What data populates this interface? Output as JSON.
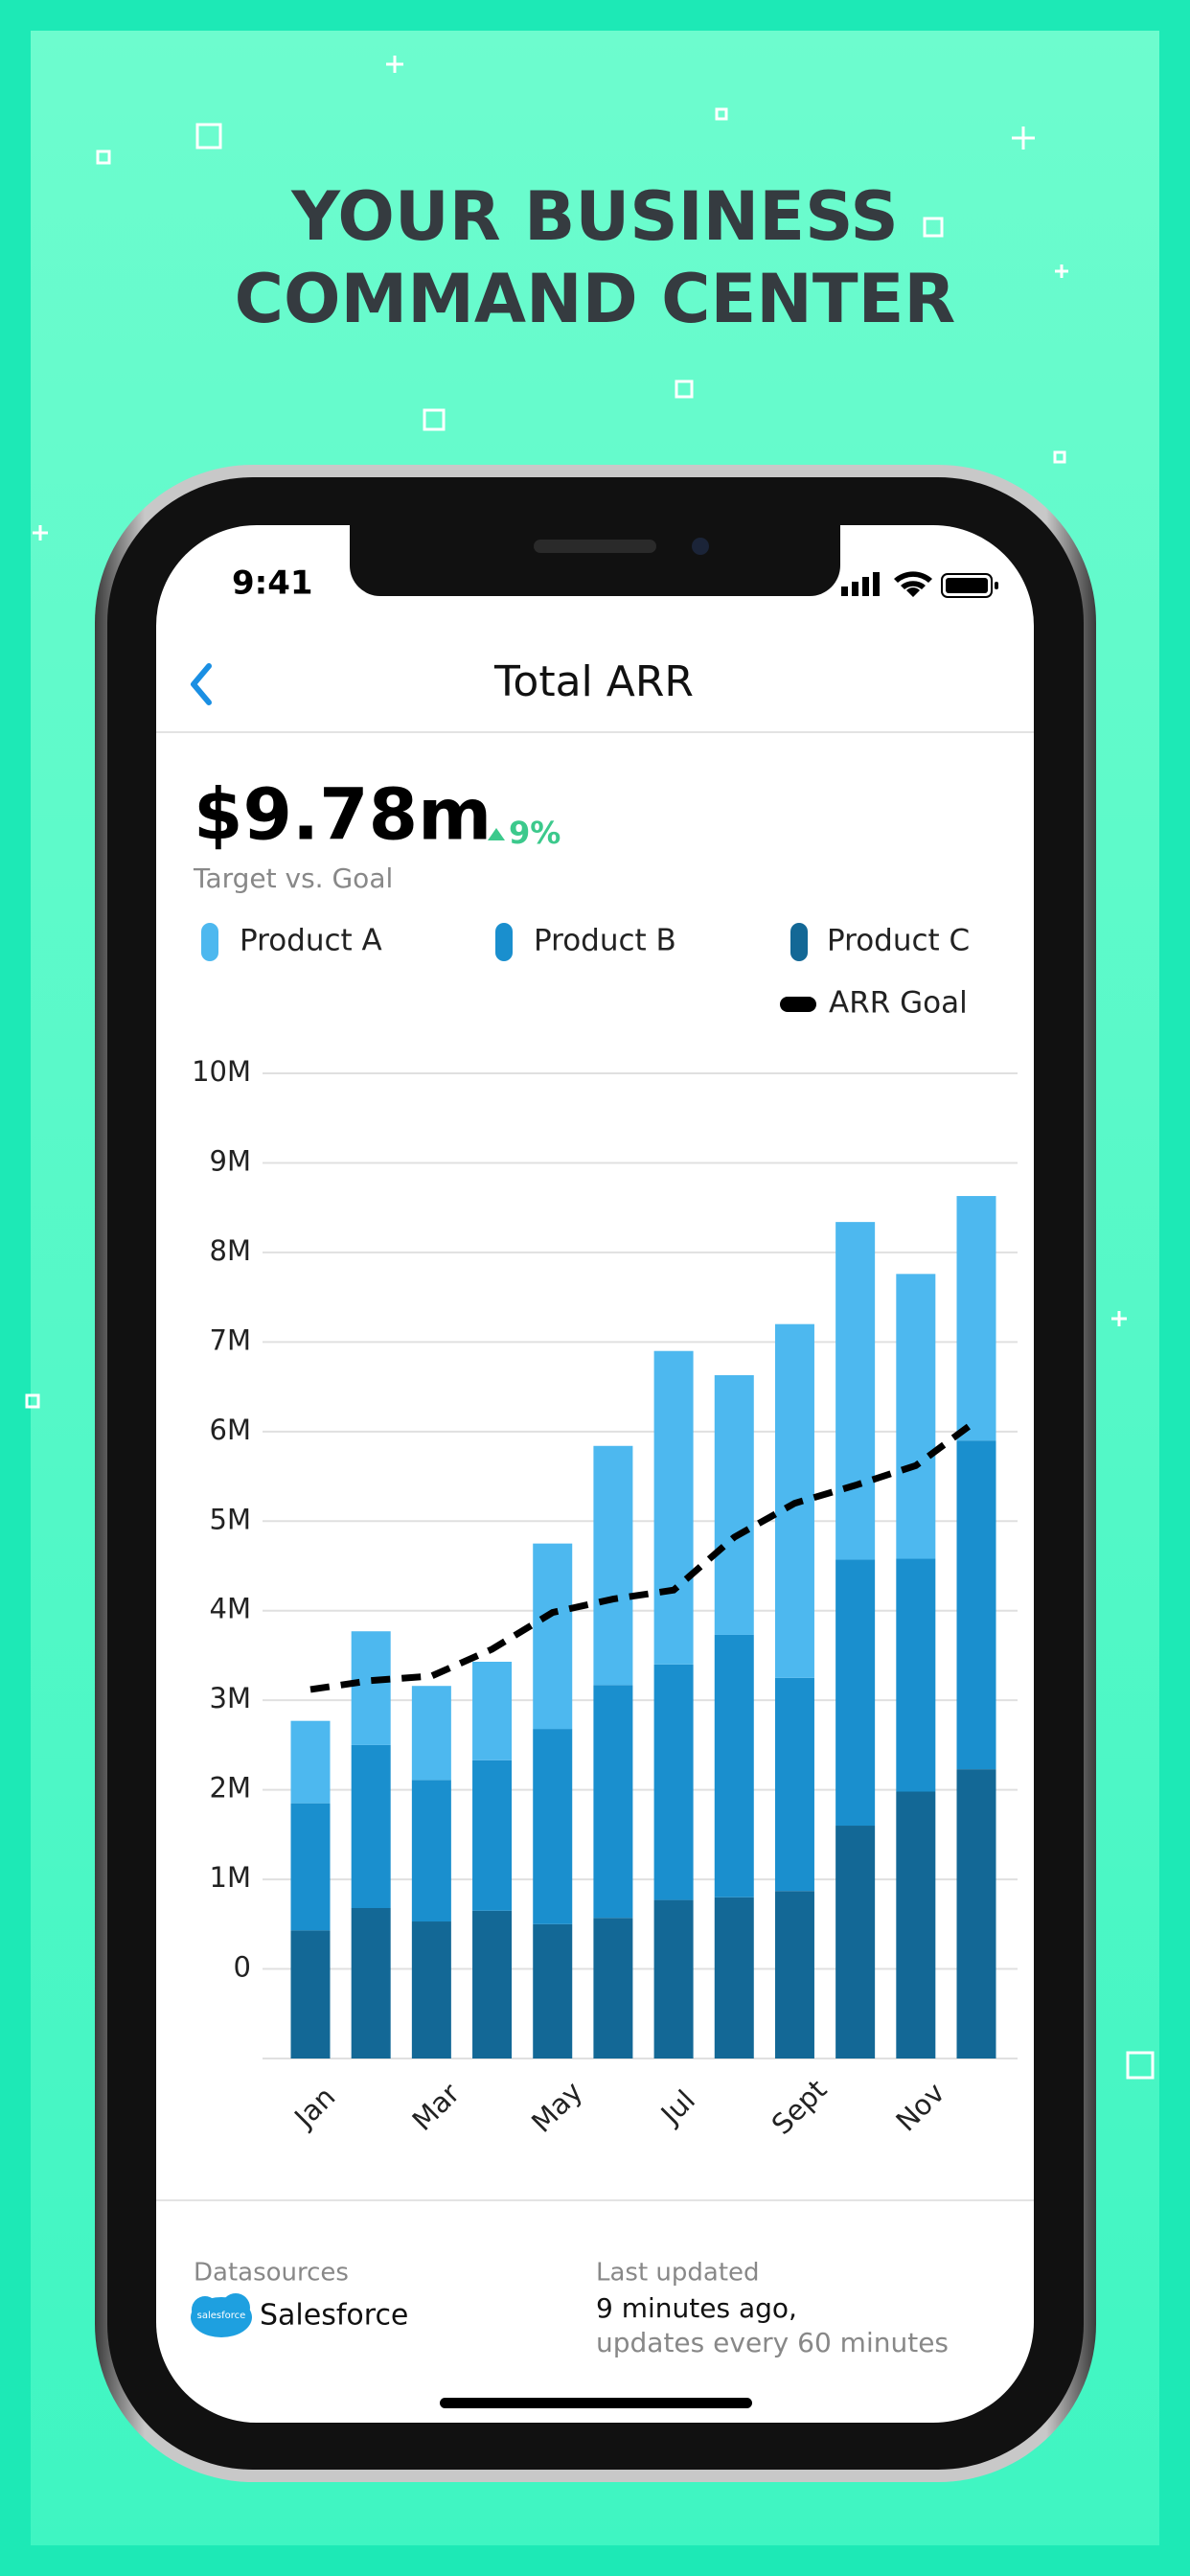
{
  "header": {
    "title_lines": [
      "YOUR BUSINESS",
      "COMMAND CENTER"
    ]
  },
  "status_bar": {
    "time": "9:41"
  },
  "screen": {
    "title": "Total ARR"
  },
  "kpi": {
    "value": "$9.78m",
    "change": "9%",
    "subtitle": "Target vs. Goal"
  },
  "chart_data": {
    "type": "stacked_bar",
    "categories": [
      "Jan",
      null,
      "Mar",
      null,
      "May",
      null,
      "Jul",
      null,
      "Sept",
      null,
      "Nov",
      null
    ],
    "series": [
      {
        "name": "Product A",
        "type": "bar",
        "color": "#4db8ef",
        "values": [
          920000,
          1270000,
          1050000,
          1100000,
          2070000,
          2670000,
          3500000,
          2900000,
          3950000,
          3770000,
          3180000,
          2730000
        ]
      },
      {
        "name": "Product B",
        "type": "bar",
        "color": "#1a8fce",
        "values": [
          1420000,
          1820000,
          1580000,
          1680000,
          2180000,
          2600000,
          2630000,
          2930000,
          2380000,
          2970000,
          2600000,
          3670000
        ]
      },
      {
        "name": "Product C",
        "type": "bar",
        "color": "#136896",
        "values": [
          1430000,
          1680000,
          1530000,
          1650000,
          1500000,
          1570000,
          1770000,
          1800000,
          1870000,
          2600000,
          2980000,
          3230000
        ]
      },
      {
        "name": "ARR Goal",
        "type": "line",
        "color": "#000000",
        "values": [
          3120000,
          3220000,
          3270000,
          3570000,
          3980000,
          4130000,
          4230000,
          4820000,
          5200000,
          5400000,
          5620000,
          6120000
        ]
      }
    ],
    "ylim": [
      -1000000,
      10000000
    ],
    "yticks": [
      0,
      {
        "value": 1000000,
        "label": "1M"
      },
      {
        "value": 2000000,
        "label": "2M"
      },
      {
        "value": 3000000,
        "label": "3M"
      },
      {
        "value": 4000000,
        "label": "4M"
      },
      {
        "value": 5000000,
        "label": "5M"
      },
      {
        "value": 6000000,
        "label": "6M"
      },
      {
        "value": 7000000,
        "label": "7M"
      },
      {
        "value": 8000000,
        "label": "8M"
      },
      {
        "value": 9000000,
        "label": "9M"
      },
      {
        "value": 10000000,
        "label": "10M"
      }
    ],
    "grid": true
  },
  "footer": {
    "datasources_label": "Datasources",
    "datasource_logo_text": "salesforce",
    "datasource": "Salesforce",
    "updated_label": "Last updated",
    "updated_lines": [
      "9 minutes ago,",
      "updates every 60 minutes"
    ]
  }
}
